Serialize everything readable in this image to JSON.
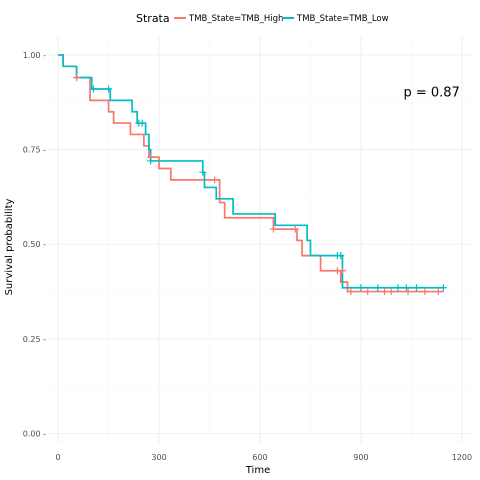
{
  "chart_data": {
    "type": "line",
    "subtype": "kaplan-meier",
    "title": "",
    "xlabel": "Time",
    "ylabel": "Survival probability",
    "xlim": [
      -30,
      1230
    ],
    "ylim": [
      -0.025,
      1.05
    ],
    "x_ticks": [
      0,
      300,
      600,
      900,
      1200
    ],
    "x_tick_labels": [
      "0",
      "300",
      "600",
      "900",
      "1200"
    ],
    "y_ticks": [
      0,
      0.25,
      0.5,
      0.75,
      1.0
    ],
    "y_tick_labels": [
      "0.00 -",
      "0.25 -",
      "0.50 -",
      "0.75 -",
      "1.00 -"
    ],
    "grid": true,
    "legend": {
      "title": "Strata",
      "placement": "top"
    },
    "annotation": {
      "text": "p = 0.87",
      "x": 1110,
      "y": 0.89
    },
    "series": [
      {
        "name": "TMB_State=TMB_High",
        "color": "#f8766d",
        "steps": [
          [
            0,
            1.0
          ],
          [
            15,
            0.97
          ],
          [
            55,
            0.94
          ],
          [
            95,
            0.88
          ],
          [
            150,
            0.85
          ],
          [
            165,
            0.82
          ],
          [
            215,
            0.79
          ],
          [
            255,
            0.76
          ],
          [
            270,
            0.73
          ],
          [
            300,
            0.7
          ],
          [
            335,
            0.67
          ],
          [
            480,
            0.61
          ],
          [
            495,
            0.57
          ],
          [
            640,
            0.54
          ],
          [
            710,
            0.51
          ],
          [
            725,
            0.47
          ],
          [
            780,
            0.43
          ],
          [
            840,
            0.4
          ],
          [
            860,
            0.375
          ],
          [
            1145,
            0.375
          ]
        ],
        "censors": [
          [
            55,
            0.94
          ],
          [
            275,
            0.73
          ],
          [
            465,
            0.67
          ],
          [
            640,
            0.54
          ],
          [
            705,
            0.54
          ],
          [
            830,
            0.43
          ],
          [
            845,
            0.43
          ],
          [
            870,
            0.375
          ],
          [
            920,
            0.375
          ],
          [
            970,
            0.375
          ],
          [
            990,
            0.375
          ],
          [
            1040,
            0.375
          ],
          [
            1090,
            0.375
          ],
          [
            1130,
            0.375
          ]
        ]
      },
      {
        "name": "TMB_State=TMB_Low",
        "color": "#00bfc4",
        "steps": [
          [
            0,
            1.0
          ],
          [
            15,
            0.97
          ],
          [
            55,
            0.94
          ],
          [
            100,
            0.91
          ],
          [
            155,
            0.88
          ],
          [
            220,
            0.85
          ],
          [
            235,
            0.82
          ],
          [
            260,
            0.79
          ],
          [
            270,
            0.75
          ],
          [
            275,
            0.72
          ],
          [
            430,
            0.69
          ],
          [
            435,
            0.65
          ],
          [
            470,
            0.62
          ],
          [
            520,
            0.58
          ],
          [
            645,
            0.55
          ],
          [
            740,
            0.51
          ],
          [
            750,
            0.47
          ],
          [
            845,
            0.385
          ],
          [
            1145,
            0.385
          ]
        ],
        "censors": [
          [
            105,
            0.91
          ],
          [
            150,
            0.91
          ],
          [
            240,
            0.82
          ],
          [
            250,
            0.82
          ],
          [
            275,
            0.72
          ],
          [
            430,
            0.69
          ],
          [
            830,
            0.47
          ],
          [
            840,
            0.47
          ],
          [
            900,
            0.385
          ],
          [
            950,
            0.385
          ],
          [
            1010,
            0.385
          ],
          [
            1035,
            0.385
          ],
          [
            1065,
            0.385
          ],
          [
            1145,
            0.385
          ]
        ]
      }
    ]
  }
}
